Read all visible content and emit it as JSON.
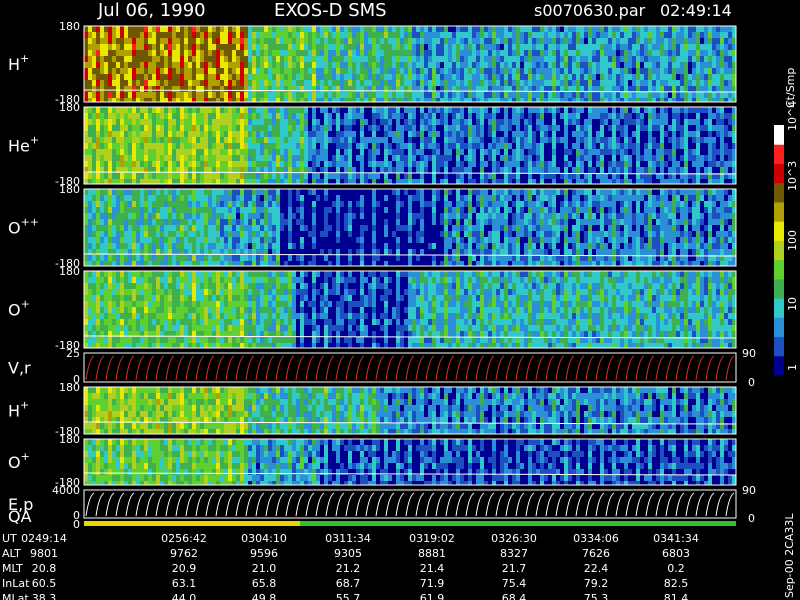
{
  "header": {
    "date": "Jul 06, 1990",
    "instrument": "EXOS-D SMS",
    "file": "s0070630.par",
    "time": "02:49:14"
  },
  "colorbar": {
    "unit": "Ct/Smp",
    "tick_labels": [
      "1",
      "10",
      "100",
      "10^3",
      "10^4"
    ],
    "colors": [
      "#000090",
      "#1c50c0",
      "#2a8fd6",
      "#30c8c8",
      "#3fb050",
      "#60d030",
      "#b0d020",
      "#e8e800",
      "#b0a000",
      "#705800",
      "#cc0000",
      "#ff2020",
      "#ffffff"
    ]
  },
  "panels": [
    {
      "key": "hp",
      "species": "H",
      "charge": "+",
      "ymax": "180",
      "ymin": "-180"
    },
    {
      "key": "hep",
      "species": "He",
      "charge": "+",
      "ymax": "180",
      "ymin": "-180"
    },
    {
      "key": "opp",
      "species": "O",
      "charge": "++",
      "ymax": "180",
      "ymin": "-180"
    },
    {
      "key": "op",
      "species": "O",
      "charge": "+",
      "ymax": "180",
      "ymin": "-180"
    },
    {
      "key": "vr",
      "species": "V,r",
      "charge": "",
      "ymax": "25",
      "ymin": "0",
      "rmax": "90",
      "rmin": "0"
    },
    {
      "key": "hp2",
      "species": "H",
      "charge": "+",
      "ymax": "180",
      "ymin": "-180"
    },
    {
      "key": "op2",
      "species": "O",
      "charge": "+",
      "ymax": "180",
      "ymin": "-180"
    },
    {
      "key": "ep",
      "species": "E,p",
      "charge": "",
      "ymax": "4000",
      "ymin": "0",
      "rmax": "90",
      "rmin": "0"
    },
    {
      "key": "qa",
      "species": "QA",
      "charge": "",
      "ymax": "",
      "ymin": "0"
    }
  ],
  "table": {
    "rows": [
      {
        "label": "UT",
        "values": [
          "0249:14",
          "0256:42",
          "0304:10",
          "0311:34",
          "0319:02",
          "0326:30",
          "0334:06",
          "0341:34"
        ]
      },
      {
        "label": "ALT",
        "values": [
          "9801",
          "9762",
          "9596",
          "9305",
          "8881",
          "8327",
          "7626",
          "6803"
        ]
      },
      {
        "label": "MLT",
        "values": [
          "20.8",
          "20.9",
          "21.0",
          "21.2",
          "21.4",
          "21.7",
          "22.4",
          "0.2"
        ]
      },
      {
        "label": "InLat",
        "values": [
          "60.5",
          "63.1",
          "65.8",
          "68.7",
          "71.9",
          "75.4",
          "79.2",
          "82.5"
        ]
      },
      {
        "label": "MLat",
        "values": [
          "38.3",
          "44.0",
          "49.8",
          "55.7",
          "61.9",
          "68.4",
          "75.3",
          "81.4"
        ]
      }
    ]
  },
  "footer_tag": "Sep-00 2CA33L",
  "chart_data": {
    "type": "heatmap",
    "title": "Jul 06, 1990 EXOS-D SMS",
    "x": [
      "0249:14",
      "0256:42",
      "0304:10",
      "0311:34",
      "0319:02",
      "0326:30",
      "0334:06",
      "0341:34"
    ],
    "xlabel": "UT",
    "series": [
      {
        "name": "H+",
        "ylim": [
          -180,
          180
        ]
      },
      {
        "name": "He+",
        "ylim": [
          -180,
          180
        ]
      },
      {
        "name": "O++",
        "ylim": [
          -180,
          180
        ]
      },
      {
        "name": "O+",
        "ylim": [
          -180,
          180
        ]
      },
      {
        "name": "V,r",
        "ylim": [
          0,
          25
        ],
        "right_ylim": [
          0,
          90
        ]
      },
      {
        "name": "H+",
        "ylim": [
          -180,
          180
        ]
      },
      {
        "name": "O+",
        "ylim": [
          -180,
          180
        ]
      },
      {
        "name": "E,p",
        "ylim": [
          0,
          4000
        ],
        "right_ylim": [
          0,
          90
        ]
      }
    ],
    "colorscale": "log",
    "colorbar_range": [
      1,
      10000
    ],
    "zunit": "Ct/Smp"
  }
}
